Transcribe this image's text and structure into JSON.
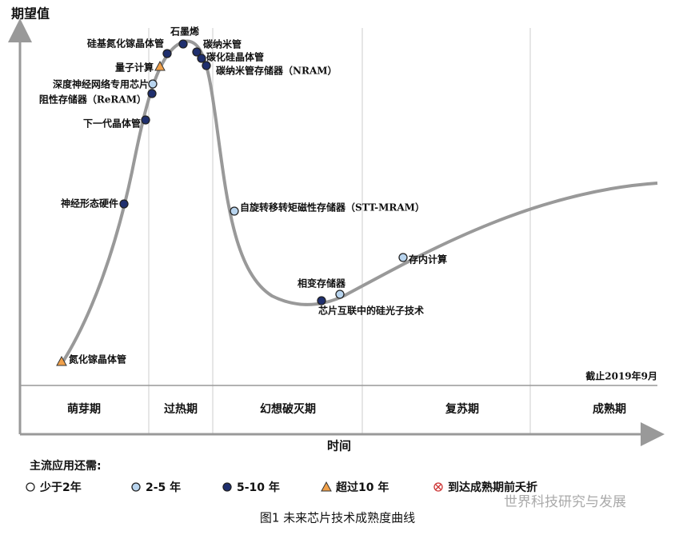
{
  "y_axis_label": "期望值",
  "x_axis_label": "时间",
  "note": "截止2019年9月",
  "phases": [
    "萌芽期",
    "过热期",
    "幻想破灭期",
    "复苏期",
    "成熟期"
  ],
  "technologies": [
    {
      "label": "氮化镓晶体管",
      "status": 3
    },
    {
      "label": "神经形态硬件",
      "status": 2
    },
    {
      "label": "下一代晶体管",
      "status": 2
    },
    {
      "label": "阻性存储器（ReRAM）",
      "status": 2
    },
    {
      "label": "深度神经网络专用芯片",
      "status": 1
    },
    {
      "label": "量子计算",
      "status": 3
    },
    {
      "label": "硅基氮化镓晶体管",
      "status": 2
    },
    {
      "label": "石墨烯",
      "status": 2
    },
    {
      "label": "碳纳米管",
      "status": 2
    },
    {
      "label": "碳化硅晶体管",
      "status": 2
    },
    {
      "label": "碳纳米管存储器（NRAM）",
      "status": 2
    },
    {
      "label": "自旋转移转矩磁性存储器（STT-MRAM）",
      "status": 1
    },
    {
      "label": "相变存储器",
      "status": 1
    },
    {
      "label": "芯片互联中的硅光子技术",
      "status": 2
    },
    {
      "label": "存内计算",
      "status": 1
    }
  ],
  "legend": {
    "title": "主流应用还需:",
    "items": [
      {
        "label": "少于2年"
      },
      {
        "label": "2-5 年"
      },
      {
        "label": "5-10 年"
      },
      {
        "label": "超过10 年"
      },
      {
        "label": "到达成熟期前夭折"
      }
    ]
  },
  "caption": "图1  未来芯片技术成熟度曲线",
  "watermark": "世界科技研究与发展"
}
